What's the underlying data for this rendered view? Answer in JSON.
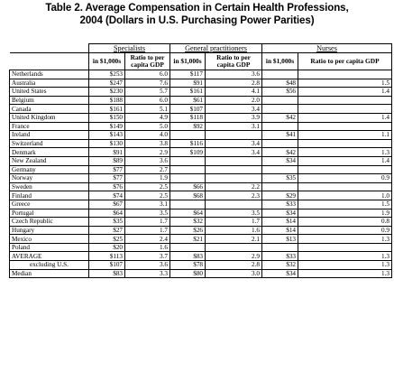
{
  "title_line1": "Table 2. Average Compensation in Certain Health Professions,",
  "title_line2": "2004 (Dollars in U.S. Purchasing Power Parities)",
  "groups": [
    "Specialists",
    "General practitioners",
    "Nurses"
  ],
  "subheaders": [
    "in $1,000s",
    "Ratio to per capita GDP",
    "in $1,000s",
    "Ratio to per capita GDP",
    "in $1,000s",
    "Ratio to per capita GDP"
  ],
  "rows": [
    {
      "country": "Netherlands",
      "c": [
        "$253",
        "6.0",
        "$117",
        "3.6",
        "",
        ""
      ]
    },
    {
      "country": "Australia",
      "c": [
        "$247",
        "7.6",
        "$91",
        "2.8",
        "$48",
        "1.5"
      ]
    },
    {
      "country": "United States",
      "c": [
        "$230",
        "5.7",
        "$161",
        "4.1",
        "$56",
        "1.4"
      ]
    },
    {
      "country": "Belgium",
      "c": [
        "$188",
        "6.0",
        "$61",
        "2.0",
        "",
        ""
      ]
    },
    {
      "country": "Canada",
      "c": [
        "$161",
        "5.1",
        "$107",
        "3.4",
        "",
        ""
      ]
    },
    {
      "country": "United Kingdom",
      "c": [
        "$150",
        "4.9",
        "$118",
        "3.9",
        "$42",
        "1.4"
      ]
    },
    {
      "country": "France",
      "c": [
        "$149",
        "5.0",
        "$92",
        "3.1",
        "",
        ""
      ]
    },
    {
      "country": "Ireland",
      "c": [
        "$143",
        "4.0",
        "",
        "",
        "$41",
        "1.1"
      ]
    },
    {
      "country": "Switzerland",
      "c": [
        "$130",
        "3.8",
        "$116",
        "3.4",
        "",
        ""
      ]
    },
    {
      "country": "Denmark",
      "c": [
        "$91",
        "2.9",
        "$109",
        "3.4",
        "$42",
        "1.3"
      ]
    },
    {
      "country": "New Zealand",
      "c": [
        "$89",
        "3.6",
        "",
        "",
        "$34",
        "1.4"
      ]
    },
    {
      "country": "Germany",
      "c": [
        "$77",
        "2.7",
        "",
        "",
        "",
        ""
      ]
    },
    {
      "country": "Norway",
      "c": [
        "$77",
        "1.9",
        "",
        "",
        "$35",
        "0.9"
      ]
    },
    {
      "country": "Sweden",
      "c": [
        "$76",
        "2.5",
        "$66",
        "2.2",
        "",
        ""
      ]
    },
    {
      "country": "Finland",
      "c": [
        "$74",
        "2.5",
        "$68",
        "2.3",
        "$29",
        "1.0"
      ]
    },
    {
      "country": "Greece",
      "c": [
        "$67",
        "3.1",
        "",
        "",
        "$33",
        "1.5"
      ]
    },
    {
      "country": "Portugal",
      "c": [
        "$64",
        "3.5",
        "$64",
        "3.5",
        "$34",
        "1.9"
      ]
    },
    {
      "country": "Czech Republic",
      "c": [
        "$35",
        "1.7",
        "$32",
        "1.7",
        "$14",
        "0.8"
      ]
    },
    {
      "country": "Hungary",
      "c": [
        "$27",
        "1.7",
        "$26",
        "1.6",
        "$14",
        "0.9"
      ]
    },
    {
      "country": "Mexico",
      "c": [
        "$25",
        "2.4",
        "$21",
        "2.1",
        "$13",
        "1.3"
      ]
    },
    {
      "country": "Poland",
      "c": [
        "$20",
        "1.6",
        "",
        "",
        "",
        ""
      ]
    },
    {
      "country": "AVERAGE",
      "c": [
        "$113",
        "3.7",
        "$83",
        "2.9",
        "$33",
        "1.3"
      ]
    },
    {
      "country": "excluding U.S.",
      "c": [
        "$107",
        "3.6",
        "$78",
        "2.8",
        "$32",
        "1.3"
      ],
      "indent": true
    },
    {
      "country": "Median",
      "c": [
        "$83",
        "3.3",
        "$80",
        "3.0",
        "$34",
        "1.3"
      ]
    }
  ]
}
